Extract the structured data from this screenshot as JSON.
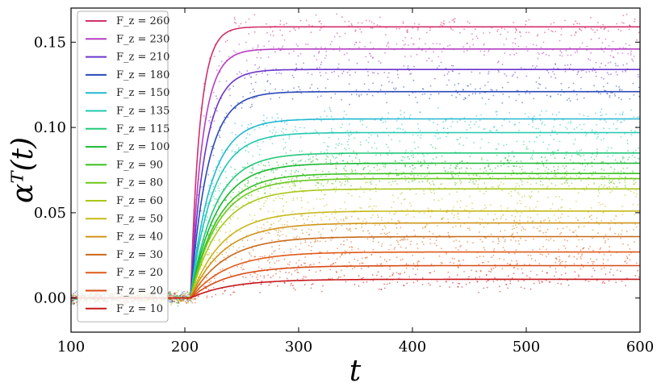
{
  "chart_data": {
    "type": "scatter",
    "title": "",
    "xlabel": "t",
    "ylabel": "αᵀ(t)",
    "xlim": [
      100,
      600
    ],
    "ylim": [
      -0.02,
      0.17
    ],
    "xticks": [
      "100",
      "200",
      "300",
      "400",
      "500",
      "600"
    ],
    "yticks": [
      "0.00",
      "0.05",
      "0.10",
      "0.15"
    ],
    "grid": false,
    "legend_position": "top-left",
    "onset_t": 205,
    "noise_amplitude": 0.01,
    "series": [
      {
        "name": "F_z = 260",
        "plateau": 0.159,
        "color": "#d1306a"
      },
      {
        "name": "F_z = 230",
        "plateau": 0.146,
        "color": "#b53ec2"
      },
      {
        "name": "F_z = 210",
        "plateau": 0.134,
        "color": "#6c35cc"
      },
      {
        "name": "F_z = 180",
        "plateau": 0.121,
        "color": "#2a48b8"
      },
      {
        "name": "F_z = 150",
        "plateau": 0.105,
        "color": "#20b8d0"
      },
      {
        "name": "F_z = 135",
        "plateau": 0.097,
        "color": "#20c8b0"
      },
      {
        "name": "F_z = 115",
        "plateau": 0.085,
        "color": "#22c87a"
      },
      {
        "name": "F_z = 100",
        "plateau": 0.079,
        "color": "#18b830"
      },
      {
        "name": "F_z = 90",
        "plateau": 0.073,
        "color": "#38c020"
      },
      {
        "name": "F_z = 80",
        "plateau": 0.07,
        "color": "#6ac818"
      },
      {
        "name": "F_z = 60",
        "plateau": 0.064,
        "color": "#a8c818"
      },
      {
        "name": "F_z = 50",
        "plateau": 0.051,
        "color": "#c8b818"
      },
      {
        "name": "F_z = 40",
        "plateau": 0.044,
        "color": "#d09418"
      },
      {
        "name": "F_z = 30",
        "plateau": 0.036,
        "color": "#c86a18"
      },
      {
        "name": "F_z = 20",
        "plateau": 0.027,
        "color": "#e05a18"
      },
      {
        "name": "F_z = 20",
        "plateau": 0.019,
        "color": "#d84a12"
      },
      {
        "name": "F_z = 10",
        "plateau": 0.011,
        "color": "#c8161a"
      }
    ]
  }
}
